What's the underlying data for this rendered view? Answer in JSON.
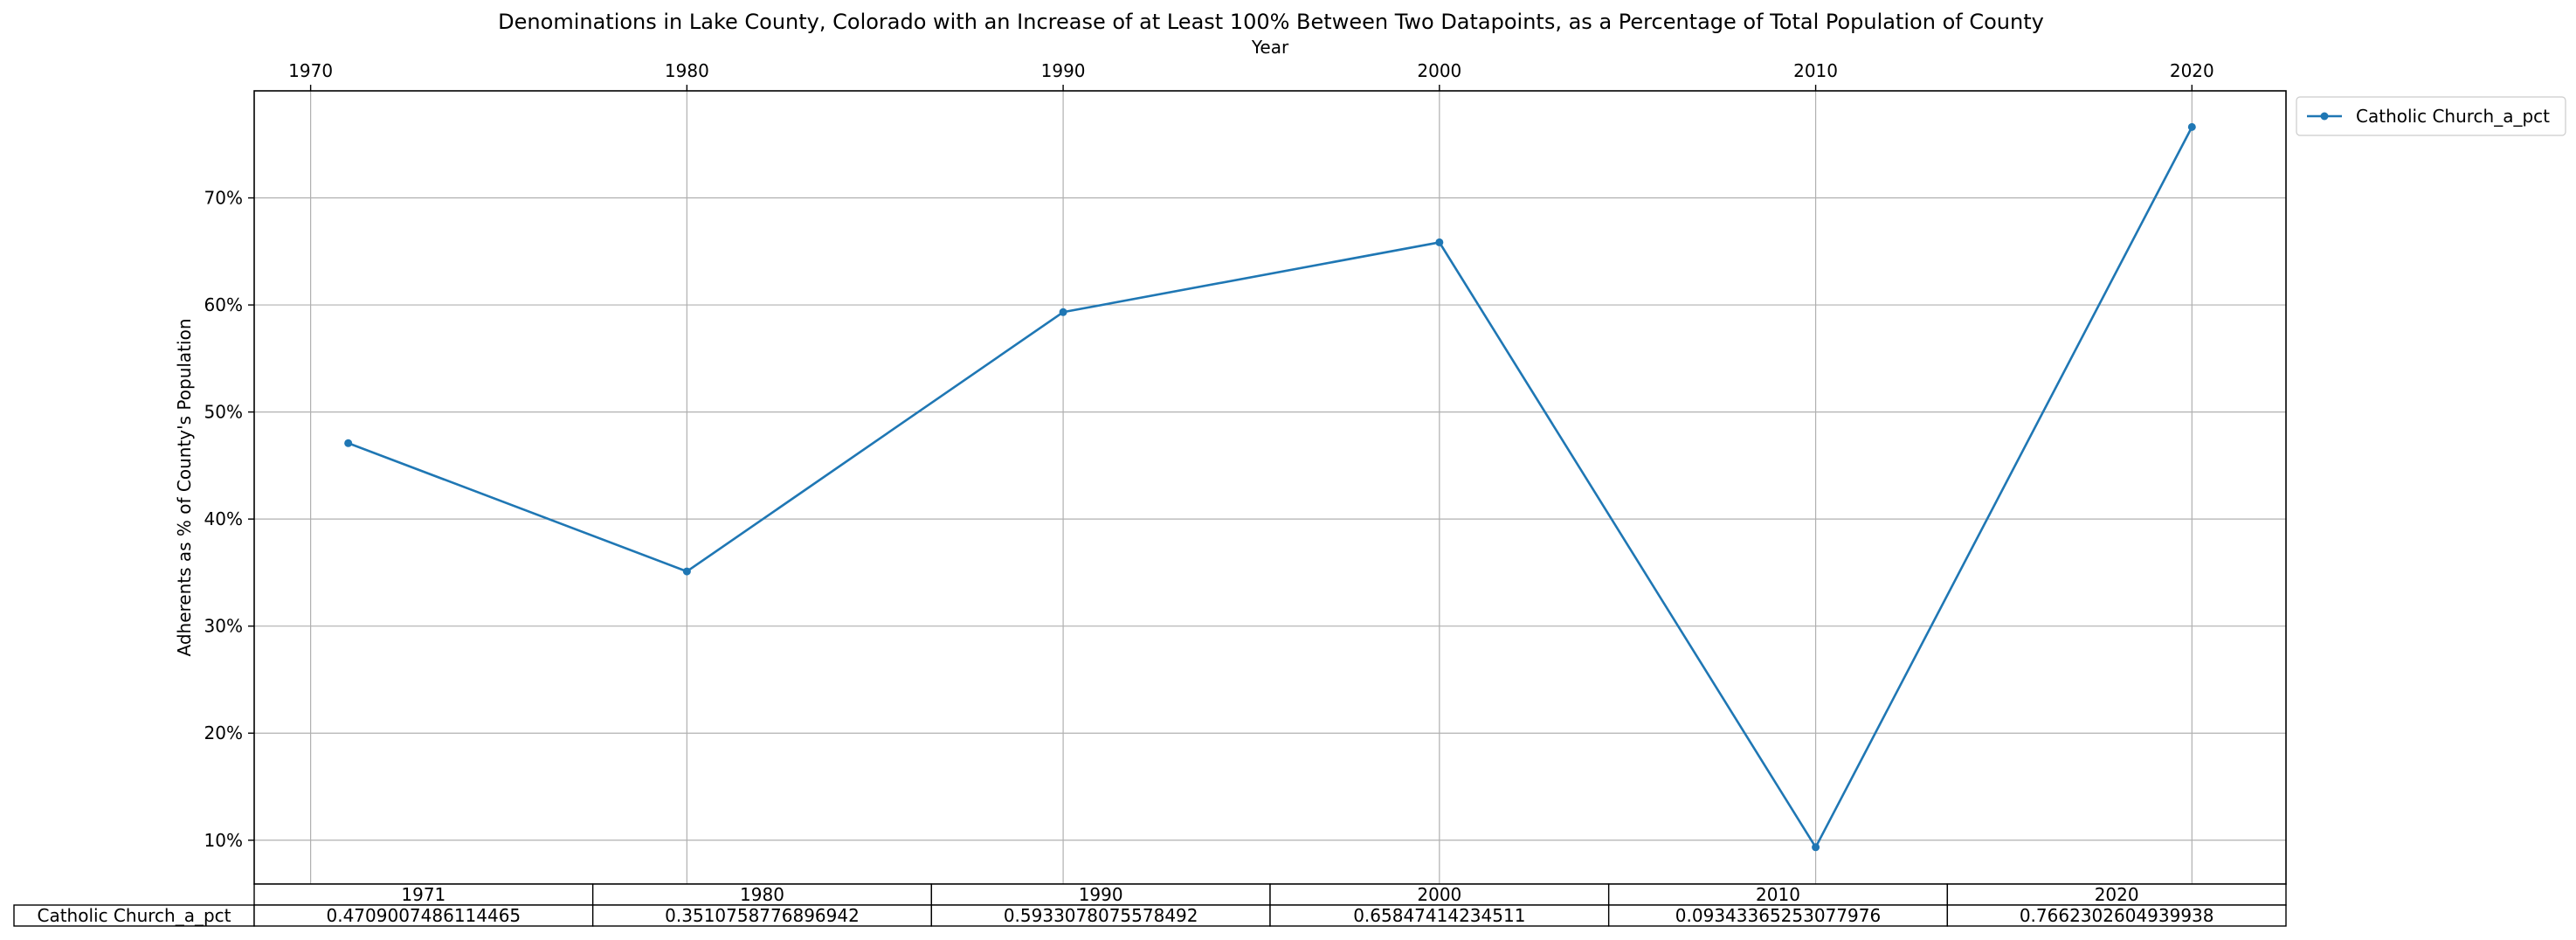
{
  "chart_data": {
    "type": "line",
    "title": "Denominations in Lake County, Colorado with an Increase of at Least 100% Between Two Datapoints, as a Percentage of Total Population of County",
    "xlabel": "Year",
    "ylabel": "Adherents as % of County's Population",
    "x_ticks": [
      "1970",
      "1980",
      "1990",
      "2000",
      "2010",
      "2020"
    ],
    "x_tick_values": [
      1970,
      1980,
      1990,
      2000,
      2010,
      2020
    ],
    "xlim": [
      1968.5,
      2022.5
    ],
    "y_ticks": [
      "10%",
      "20%",
      "30%",
      "40%",
      "50%",
      "60%",
      "70%"
    ],
    "y_tick_values": [
      0.1,
      0.2,
      0.3,
      0.4,
      0.5,
      0.6,
      0.7
    ],
    "ylim": [
      0.059,
      0.8
    ],
    "grid": true,
    "x_axis_position": "top",
    "legend_position": "outside-top-right",
    "series": [
      {
        "name": "Catholic Church_a_pct",
        "color": "#1f77b4",
        "marker": "circle",
        "x": [
          1971,
          1980,
          1990,
          2000,
          2010,
          2020
        ],
        "values": [
          0.4709007486114465,
          0.3510758776896942,
          0.5933078075578492,
          0.65847414234511,
          0.09343365253077976,
          0.7662302604939938
        ]
      }
    ],
    "table": {
      "columns": [
        "1971",
        "1980",
        "1990",
        "2000",
        "2010",
        "2020"
      ],
      "rows": [
        {
          "label": "Catholic Church_a_pct",
          "cells": [
            "0.4709007486114465",
            "0.3510758776896942",
            "0.5933078075578492",
            "0.65847414234511",
            "0.09343365253077976",
            "0.7662302604939938"
          ]
        }
      ]
    }
  }
}
